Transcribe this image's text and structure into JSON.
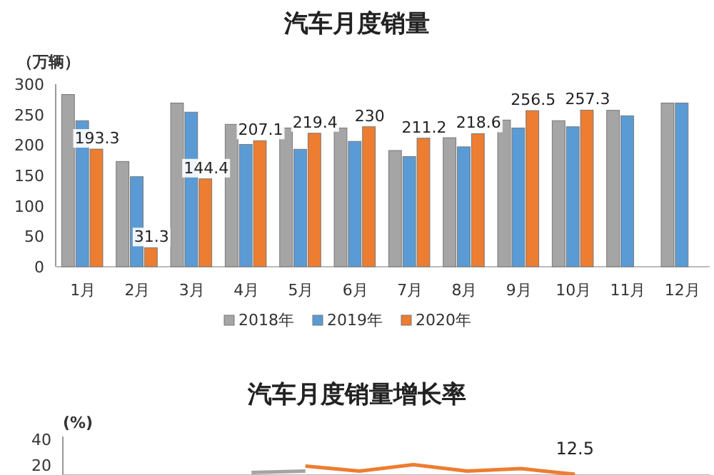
{
  "chart_data": [
    {
      "type": "bar",
      "title": "汽车月度销量",
      "ylabel": "（万辆）",
      "categories": [
        "1月",
        "2月",
        "3月",
        "4月",
        "5月",
        "6月",
        "7月",
        "8月",
        "9月",
        "10月",
        "11月",
        "12月"
      ],
      "ylim": [
        0,
        300
      ],
      "yticks": [
        0,
        50,
        100,
        150,
        200,
        250,
        300
      ],
      "legend": "bottom",
      "grid": false,
      "series": [
        {
          "name": "2018年",
          "color": "#a5a5a5",
          "values": [
            283,
            173,
            269,
            234,
            228,
            228,
            191,
            212,
            241,
            240,
            257,
            269
          ]
        },
        {
          "name": "2019年",
          "color": "#5b9bd5",
          "values": [
            240,
            148,
            254,
            201,
            193,
            206,
            181,
            197,
            228,
            230,
            248,
            269
          ]
        },
        {
          "name": "2020年",
          "color": "#ed7d31",
          "values": [
            193.3,
            31.3,
            144.4,
            207.1,
            219.4,
            230,
            211.2,
            218.6,
            256.5,
            257.3,
            null,
            null
          ],
          "value_labels": [
            "193.3",
            "31.3",
            "144.4",
            "207.1",
            "219.4",
            "230",
            "211.2",
            "218.6",
            "256.5",
            "257.3",
            null,
            null
          ]
        }
      ]
    },
    {
      "type": "line",
      "title": "汽车月度销量增长率",
      "ylabel": "(%)",
      "categories": [
        null,
        null,
        null,
        null,
        null,
        null,
        null,
        null,
        null,
        null,
        null,
        null
      ],
      "ylim": [
        12,
        42
      ],
      "yticks": [
        20,
        40
      ],
      "tick_labels": "y",
      "grid": false,
      "series": [
        {
          "color": "#a5a5a5",
          "values": [
            null,
            null,
            null,
            14,
            15,
            null,
            null,
            null,
            null,
            null,
            null,
            null
          ]
        },
        {
          "color": "#ed7d31",
          "values": [
            null,
            null,
            null,
            null,
            19,
            15,
            20,
            15,
            17,
            12.5,
            null,
            null
          ],
          "value_labels": [
            null,
            null,
            null,
            null,
            null,
            null,
            null,
            null,
            null,
            "12.5",
            null,
            null
          ]
        }
      ]
    }
  ]
}
